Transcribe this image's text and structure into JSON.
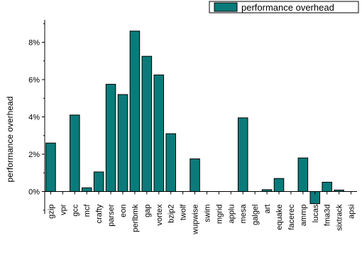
{
  "chart_data": {
    "type": "bar",
    "ylabel": "performance overhead",
    "xlabel": "",
    "ylim": [
      -1.2,
      9.2
    ],
    "yticks": [
      0,
      2,
      4,
      6,
      8
    ],
    "ytick_labels": [
      "0%",
      "2%",
      "4%",
      "6%",
      "8%"
    ],
    "grid": false,
    "legend": {
      "position": "top-right",
      "entries": [
        "performance overhead"
      ]
    },
    "bar_color": "#0a7b7b",
    "categories": [
      "gzip",
      "vpr",
      "gcc",
      "mcf",
      "crafty",
      "parser",
      "eon",
      "perlbmk",
      "gap",
      "vortex",
      "bzip2",
      "twolf",
      "wupwise",
      "swim",
      "mgrid",
      "applu",
      "mesa",
      "galgel",
      "art",
      "equake",
      "facerec",
      "ammp",
      "lucas",
      "fma3d",
      "sixtrack",
      "apsi"
    ],
    "series": [
      {
        "name": "performance overhead",
        "values": [
          2.6,
          0,
          4.1,
          0.2,
          1.05,
          5.75,
          5.2,
          8.6,
          7.25,
          6.25,
          3.1,
          0,
          1.75,
          0,
          0,
          0,
          3.95,
          0,
          0.1,
          0.7,
          0,
          1.8,
          -0.65,
          0.5,
          0.08,
          0
        ]
      }
    ]
  }
}
